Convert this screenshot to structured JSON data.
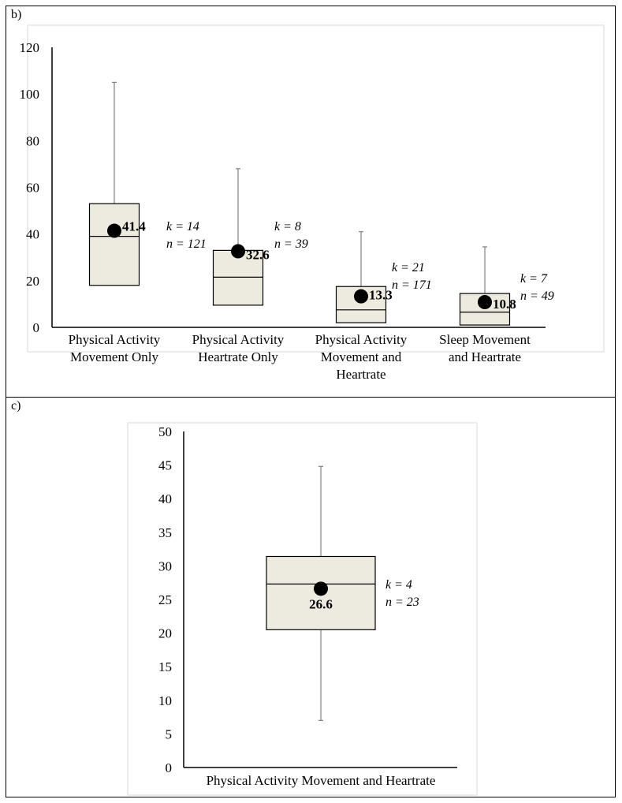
{
  "panels": [
    {
      "label": "b)"
    },
    {
      "label": "c)"
    }
  ],
  "chart_data": [
    {
      "type": "box",
      "ylim": [
        0,
        120
      ],
      "yticks": [
        0,
        20,
        40,
        60,
        80,
        100,
        120
      ],
      "boxes": [
        {
          "category": [
            "Physical Activity",
            "Movement Only"
          ],
          "whisker_low": 18,
          "q1": 18,
          "median": 39,
          "q3": 53,
          "whisker_high": 105,
          "mean": 41.4,
          "mean_label": "41.4",
          "k_label": "k = 14",
          "n_label": "n = 121"
        },
        {
          "category": [
            "Physical Activity",
            "Heartrate Only"
          ],
          "whisker_low": 9.5,
          "q1": 9.5,
          "median": 21.5,
          "q3": 33,
          "whisker_high": 68,
          "mean": 32.6,
          "mean_label": "32.6",
          "k_label": "k = 8",
          "n_label": "n = 39"
        },
        {
          "category": [
            "Physical Activity",
            "Movement and",
            "Heartrate"
          ],
          "whisker_low": 2,
          "q1": 2,
          "median": 7.5,
          "q3": 17.5,
          "whisker_high": 41,
          "mean": 13.3,
          "mean_label": "13.3",
          "k_label": "k = 21",
          "n_label": "n = 171"
        },
        {
          "category": [
            "Sleep Movement",
            "and Heartrate"
          ],
          "whisker_low": 1,
          "q1": 1,
          "median": 6.5,
          "q3": 14.5,
          "whisker_high": 34.5,
          "mean": 10.8,
          "mean_label": "10.8",
          "k_label": "k = 7",
          "n_label": "n = 49"
        }
      ]
    },
    {
      "type": "box",
      "ylim": [
        0,
        50
      ],
      "yticks": [
        0,
        5,
        10,
        15,
        20,
        25,
        30,
        35,
        40,
        45,
        50
      ],
      "boxes": [
        {
          "category": [
            "Physical Activity Movement and Heartrate"
          ],
          "whisker_low": 7,
          "q1": 20.5,
          "median": 27.3,
          "q3": 31.4,
          "whisker_high": 44.8,
          "mean": 26.6,
          "mean_label": "26.6",
          "k_label": "k = 4",
          "n_label": "n = 23"
        }
      ]
    }
  ],
  "colors": {
    "box_fill": "#edebe0",
    "whisker": "#808080",
    "axis": "#000000",
    "mean_dot": "#000000",
    "frame": "#d9d9d9"
  }
}
